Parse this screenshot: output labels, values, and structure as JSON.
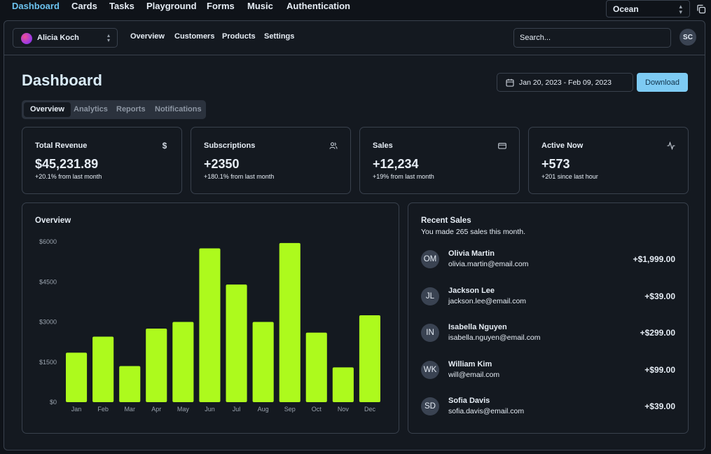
{
  "topnav": {
    "links": [
      "Dashboard",
      "Cards",
      "Tasks",
      "Playground",
      "Forms",
      "Music",
      "Authentication"
    ],
    "active": "Dashboard",
    "theme_select": "Ocean"
  },
  "appbar": {
    "team": "Alicia Koch",
    "nav": [
      "Overview",
      "Customers",
      "Products",
      "Settings"
    ],
    "search_placeholder": "Search...",
    "user_initials": "SC"
  },
  "page": {
    "title": "Dashboard",
    "date_range": "Jan 20, 2023 - Feb 09, 2023",
    "download_label": "Download",
    "tabs": [
      "Overview",
      "Analytics",
      "Reports",
      "Notifications"
    ],
    "active_tab": "Overview"
  },
  "stats": [
    {
      "label": "Total Revenue",
      "value": "$45,231.89",
      "sub": "+20.1% from last month",
      "icon": "dollar-icon"
    },
    {
      "label": "Subscriptions",
      "value": "+2350",
      "sub": "+180.1% from last month",
      "icon": "users-icon"
    },
    {
      "label": "Sales",
      "value": "+12,234",
      "sub": "+19% from last month",
      "icon": "credit-card-icon"
    },
    {
      "label": "Active Now",
      "value": "+573",
      "sub": "+201 since last hour",
      "icon": "activity-icon"
    }
  ],
  "overview": {
    "title": "Overview",
    "bar_color": "#adfa1d"
  },
  "chart_data": {
    "type": "bar",
    "title": "Overview",
    "categories": [
      "Jan",
      "Feb",
      "Mar",
      "Apr",
      "May",
      "Jun",
      "Jul",
      "Aug",
      "Sep",
      "Oct",
      "Nov",
      "Dec"
    ],
    "values": [
      1850,
      2450,
      1350,
      2750,
      3000,
      5750,
      4400,
      3000,
      5950,
      2600,
      1300,
      3250
    ],
    "yticks": [
      "$0",
      "$1500",
      "$3000",
      "$4500",
      "$6000"
    ],
    "ylim": [
      0,
      6000
    ],
    "grid": false
  },
  "recent_sales": {
    "title": "Recent Sales",
    "subtitle": "You made 265 sales this month.",
    "items": [
      {
        "initials": "OM",
        "name": "Olivia Martin",
        "email": "olivia.martin@email.com",
        "amount": "+$1,999.00"
      },
      {
        "initials": "JL",
        "name": "Jackson Lee",
        "email": "jackson.lee@email.com",
        "amount": "+$39.00"
      },
      {
        "initials": "IN",
        "name": "Isabella Nguyen",
        "email": "isabella.nguyen@email.com",
        "amount": "+$299.00"
      },
      {
        "initials": "WK",
        "name": "William Kim",
        "email": "will@email.com",
        "amount": "+$99.00"
      },
      {
        "initials": "SD",
        "name": "Sofia Davis",
        "email": "sofia.davis@email.com",
        "amount": "+$39.00"
      }
    ]
  },
  "colors": {
    "background": "#0f1319",
    "border": "#39414d",
    "accent": "#6cc3f0",
    "download_button": "#7ecbf3",
    "bar": "#adfa1d",
    "avatar": "#3a4352"
  }
}
